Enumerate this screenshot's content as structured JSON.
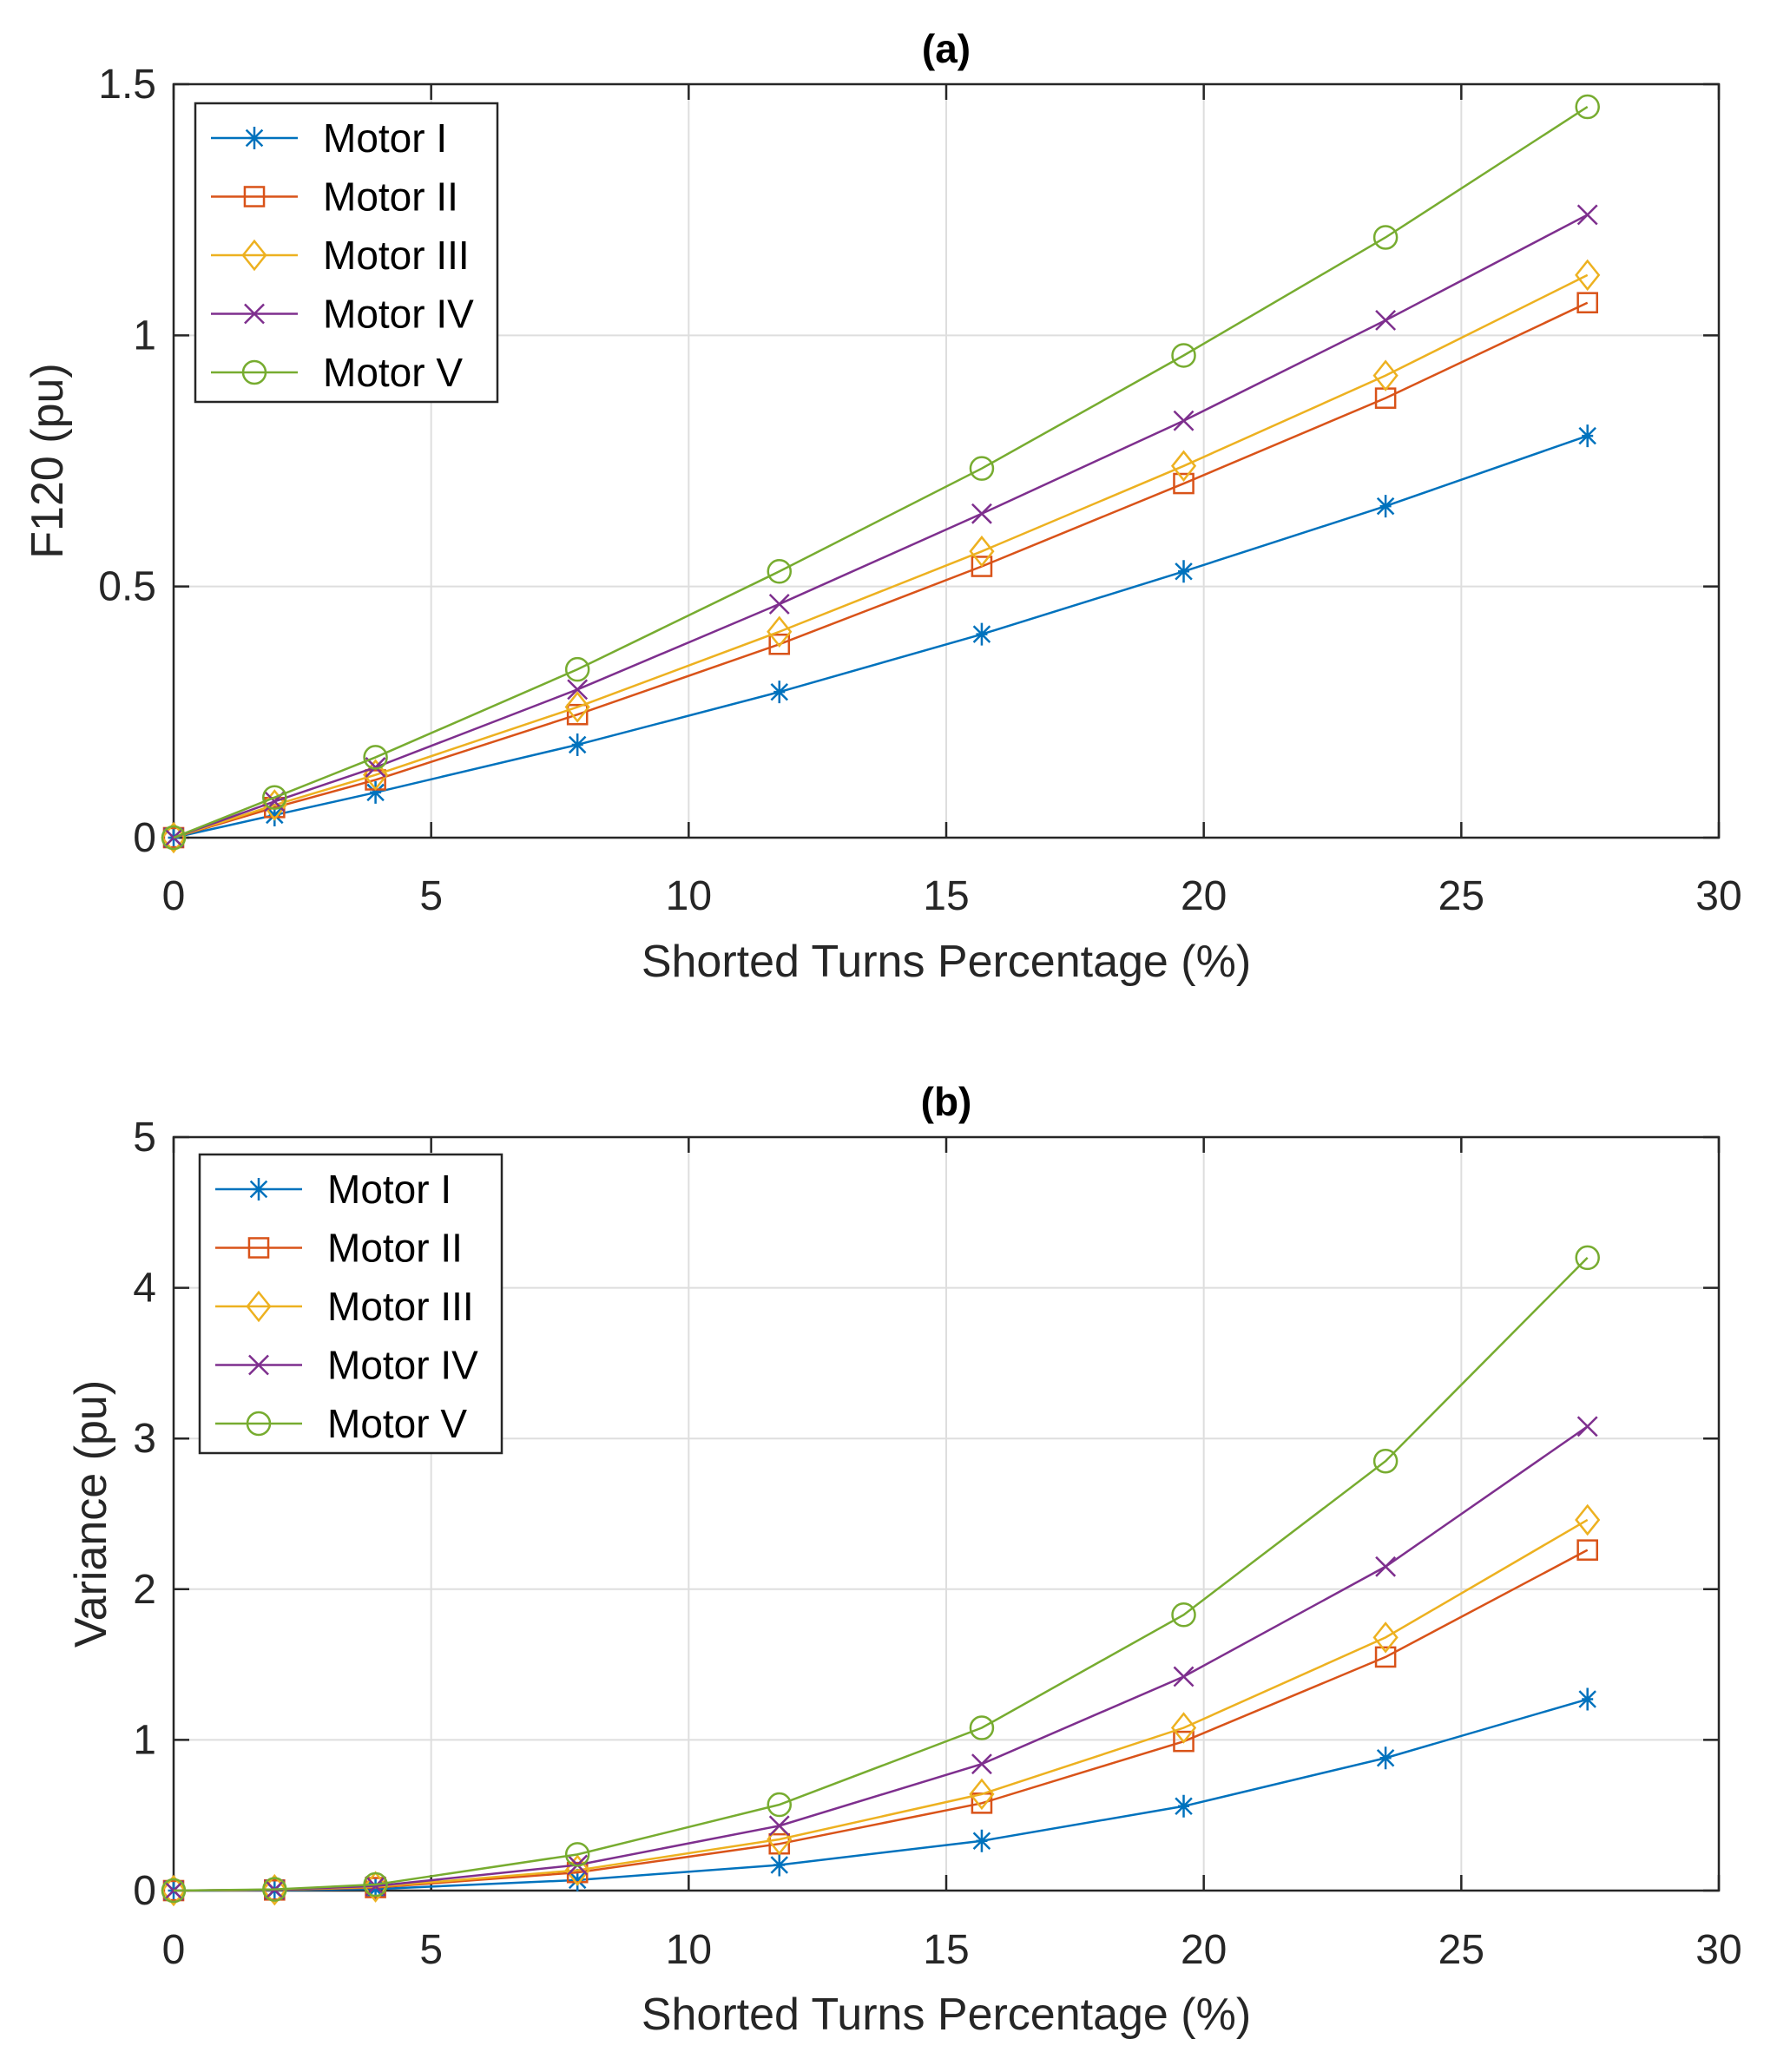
{
  "chart_data": [
    {
      "type": "line",
      "title": "(a)",
      "xlabel": "Shorted Turns Percentage (%)",
      "ylabel": "F120 (pu)",
      "xlim": [
        0,
        30
      ],
      "ylim": [
        0,
        1.5
      ],
      "xticks": [
        0,
        5,
        10,
        15,
        20,
        25,
        30
      ],
      "yticks": [
        0,
        0.5,
        1,
        1.5
      ],
      "xtick_labels": [
        "0",
        "5",
        "10",
        "15",
        "20",
        "25",
        "30"
      ],
      "ytick_labels": [
        "0",
        "0.5",
        "1",
        "1.5"
      ],
      "grid": true,
      "legend_position": "top-left",
      "x": [
        0,
        1.96,
        3.92,
        7.84,
        11.76,
        15.69,
        19.61,
        23.53,
        27.45
      ],
      "series": [
        {
          "name": "Motor I",
          "marker": "asterisk",
          "color": "#0072BD",
          "values": [
            0,
            0.045,
            0.09,
            0.185,
            0.29,
            0.405,
            0.53,
            0.66,
            0.8
          ]
        },
        {
          "name": "Motor II",
          "marker": "square",
          "color": "#D95319",
          "values": [
            0,
            0.06,
            0.115,
            0.245,
            0.385,
            0.54,
            0.705,
            0.875,
            1.065
          ]
        },
        {
          "name": "Motor III",
          "marker": "diamond",
          "color": "#EDB120",
          "values": [
            0,
            0.065,
            0.125,
            0.26,
            0.41,
            0.57,
            0.74,
            0.92,
            1.12
          ]
        },
        {
          "name": "Motor IV",
          "marker": "x",
          "color": "#7E2F8E",
          "values": [
            0,
            0.072,
            0.14,
            0.295,
            0.465,
            0.645,
            0.83,
            1.03,
            1.24
          ]
        },
        {
          "name": "Motor V",
          "marker": "circle",
          "color": "#77AC30",
          "values": [
            0,
            0.08,
            0.16,
            0.335,
            0.53,
            0.735,
            0.96,
            1.195,
            1.455
          ]
        }
      ]
    },
    {
      "type": "line",
      "title": "(b)",
      "xlabel": "Shorted Turns Percentage (%)",
      "ylabel": "Variance (pu)",
      "xlim": [
        0,
        30
      ],
      "ylim": [
        0,
        5
      ],
      "xticks": [
        0,
        5,
        10,
        15,
        20,
        25,
        30
      ],
      "yticks": [
        0,
        1,
        2,
        3,
        4,
        5
      ],
      "xtick_labels": [
        "0",
        "5",
        "10",
        "15",
        "20",
        "25",
        "30"
      ],
      "ytick_labels": [
        "0",
        "1",
        "2",
        "3",
        "4",
        "5"
      ],
      "grid": true,
      "legend_position": "top-left",
      "x": [
        0,
        1.96,
        3.92,
        7.84,
        11.76,
        15.69,
        19.61,
        23.53,
        27.45
      ],
      "series": [
        {
          "name": "Motor I",
          "marker": "asterisk",
          "color": "#0072BD",
          "values": [
            0,
            0.002,
            0.01,
            0.07,
            0.17,
            0.33,
            0.56,
            0.88,
            1.27
          ]
        },
        {
          "name": "Motor II",
          "marker": "square",
          "color": "#D95319",
          "values": [
            0,
            0.004,
            0.02,
            0.12,
            0.31,
            0.58,
            0.99,
            1.55,
            2.26
          ]
        },
        {
          "name": "Motor III",
          "marker": "diamond",
          "color": "#EDB120",
          "values": [
            0,
            0.005,
            0.025,
            0.135,
            0.34,
            0.64,
            1.08,
            1.68,
            2.46
          ]
        },
        {
          "name": "Motor IV",
          "marker": "x",
          "color": "#7E2F8E",
          "values": [
            0,
            0.006,
            0.03,
            0.17,
            0.43,
            0.84,
            1.42,
            2.15,
            3.08
          ]
        },
        {
          "name": "Motor V",
          "marker": "circle",
          "color": "#77AC30",
          "values": [
            0,
            0.008,
            0.04,
            0.24,
            0.57,
            1.08,
            1.83,
            2.85,
            4.2
          ]
        }
      ]
    }
  ]
}
